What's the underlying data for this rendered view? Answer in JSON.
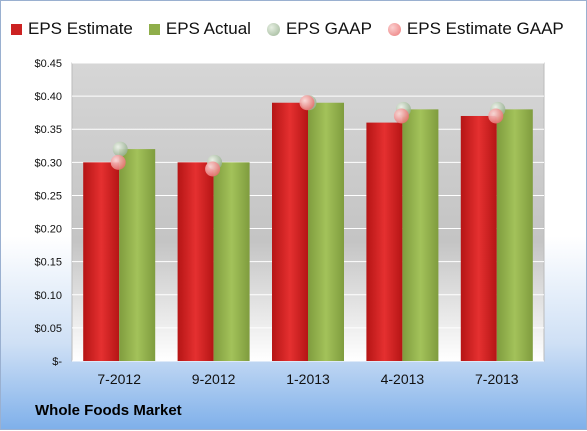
{
  "chart_data": {
    "type": "bar",
    "categories": [
      "7-2012",
      "9-2012",
      "1-2013",
      "4-2013",
      "7-2013"
    ],
    "series": [
      {
        "name": "EPS Estimate",
        "kind": "bar",
        "color": "#cc2222",
        "values": [
          0.3,
          0.3,
          0.39,
          0.36,
          0.37
        ]
      },
      {
        "name": "EPS Actual",
        "kind": "bar",
        "color": "#8fae4a",
        "values": [
          0.32,
          0.3,
          0.39,
          0.38,
          0.38
        ]
      },
      {
        "name": "EPS GAAP",
        "kind": "marker",
        "color": "#a9c2a0",
        "values": [
          0.32,
          0.3,
          0.39,
          0.38,
          0.38
        ]
      },
      {
        "name": "EPS Estimate GAAP",
        "kind": "marker",
        "color": "#f08a8a",
        "values": [
          0.3,
          0.29,
          0.39,
          0.37,
          0.37
        ]
      }
    ],
    "ylim": [
      0,
      0.45
    ],
    "yticks": [
      0,
      0.05,
      0.1,
      0.15,
      0.2,
      0.25,
      0.3,
      0.35,
      0.4,
      0.45
    ],
    "ytick_labels": [
      "$-",
      "$0.05",
      "$0.10",
      "$0.15",
      "$0.20",
      "$0.25",
      "$0.30",
      "$0.35",
      "$0.40",
      "$0.45"
    ],
    "grid": true,
    "legend_position": "top"
  },
  "footer": {
    "company": "Whole Foods Market"
  }
}
